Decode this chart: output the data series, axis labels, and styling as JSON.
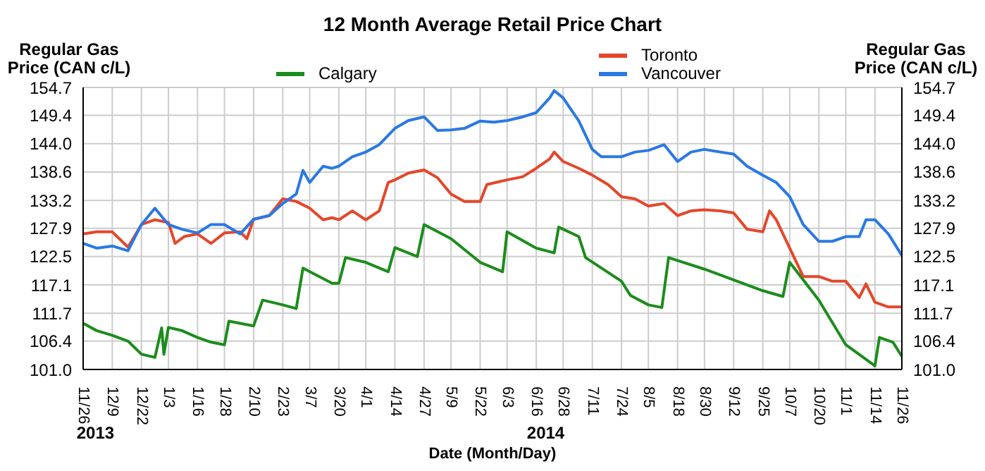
{
  "chart_data": {
    "type": "line",
    "title": "12 Month Average Retail Price Chart",
    "xlabel": "Date (Month/Day)",
    "ylabel": "Regular Gas Price (CAN c/L)",
    "y2label": "Regular Gas Price (CAN c/L)",
    "xlim": [
      "2013-11-26",
      "2014-11-26"
    ],
    "xticks": [
      {
        "value": "2013-11-26",
        "label": "11/26"
      },
      {
        "value": "2013-12-09",
        "label": "12/9"
      },
      {
        "value": "2013-12-22",
        "label": "12/22"
      },
      {
        "value": "2014-01-03",
        "label": "1/3"
      },
      {
        "value": "2014-01-16",
        "label": "1/16"
      },
      {
        "value": "2014-01-28",
        "label": "1/28"
      },
      {
        "value": "2014-02-10",
        "label": "2/10"
      },
      {
        "value": "2014-02-23",
        "label": "2/23"
      },
      {
        "value": "2014-03-07",
        "label": "3/7"
      },
      {
        "value": "2014-03-20",
        "label": "3/20"
      },
      {
        "value": "2014-04-01",
        "label": "4/1"
      },
      {
        "value": "2014-04-14",
        "label": "4/14"
      },
      {
        "value": "2014-04-27",
        "label": "4/27"
      },
      {
        "value": "2014-05-09",
        "label": "5/9"
      },
      {
        "value": "2014-05-22",
        "label": "5/22"
      },
      {
        "value": "2014-06-03",
        "label": "6/3"
      },
      {
        "value": "2014-06-16",
        "label": "6/16"
      },
      {
        "value": "2014-06-28",
        "label": "6/28"
      },
      {
        "value": "2014-07-11",
        "label": "7/11"
      },
      {
        "value": "2014-07-24",
        "label": "7/24"
      },
      {
        "value": "2014-08-05",
        "label": "8/5"
      },
      {
        "value": "2014-08-18",
        "label": "8/18"
      },
      {
        "value": "2014-08-30",
        "label": "8/30"
      },
      {
        "value": "2014-09-12",
        "label": "9/12"
      },
      {
        "value": "2014-09-25",
        "label": "9/25"
      },
      {
        "value": "2014-10-07",
        "label": "10/7"
      },
      {
        "value": "2014-10-20",
        "label": "10/20"
      },
      {
        "value": "2014-11-01",
        "label": "11/1"
      },
      {
        "value": "2014-11-14",
        "label": "11/14"
      },
      {
        "value": "2014-11-26",
        "label": "11/26"
      }
    ],
    "ylim": [
      101.0,
      154.7
    ],
    "yticks": [
      {
        "value": 101.0,
        "label": "101.0"
      },
      106.4,
      111.7,
      117.1,
      122.5,
      127.9,
      133.2,
      138.6,
      {
        "value": 144.0,
        "label": "144.0"
      },
      149.4,
      154.7
    ],
    "y2lim": [
      101.0,
      154.7
    ],
    "y2ticks": [
      {
        "value": 101.0,
        "label": "101.0"
      },
      106.4,
      111.7,
      117.1,
      122.5,
      127.9,
      133.2,
      138.6,
      {
        "value": 144.0,
        "label": "144.0"
      },
      149.4,
      154.7
    ],
    "grid": true,
    "legend": "top",
    "marker": "none",
    "line_style": "solid",
    "annotations": [
      "2013",
      "2014"
    ],
    "series": [
      {
        "name": "Calgary",
        "color": "#1c8c1c",
        "x": [
          "2013-11-26",
          "2013-12-02",
          "2013-12-09",
          "2013-12-16",
          "2013-12-22",
          "2013-12-28",
          "2013-12-31",
          "2014-01-01",
          "2014-01-03",
          "2014-01-09",
          "2014-01-16",
          "2014-01-22",
          "2014-01-28",
          "2014-01-30",
          "2014-02-10",
          "2014-02-14",
          "2014-02-23",
          "2014-03-01",
          "2014-03-04",
          "2014-03-17",
          "2014-03-20",
          "2014-03-23",
          "2014-04-01",
          "2014-04-11",
          "2014-04-14",
          "2014-04-24",
          "2014-04-27",
          "2014-05-09",
          "2014-05-22",
          "2014-06-01",
          "2014-06-03",
          "2014-06-16",
          "2014-06-24",
          "2014-06-26",
          "2014-07-05",
          "2014-07-08",
          "2014-07-24",
          "2014-07-28",
          "2014-08-05",
          "2014-08-11",
          "2014-08-14",
          "2014-08-30",
          "2014-09-25",
          "2014-10-04",
          "2014-10-07",
          "2014-10-20",
          "2014-11-01",
          "2014-11-14",
          "2014-11-16",
          "2014-11-22",
          "2014-11-26"
        ],
        "values": [
          109.8,
          108.4,
          107.5,
          106.4,
          103.9,
          103.3,
          108.9,
          103.9,
          109.0,
          108.4,
          107.1,
          106.2,
          105.7,
          110.2,
          109.3,
          114.2,
          113.3,
          112.6,
          120.3,
          117.4,
          117.4,
          122.3,
          121.4,
          119.6,
          124.2,
          122.5,
          128.6,
          125.9,
          121.4,
          119.6,
          127.2,
          124.1,
          123.2,
          128.1,
          126.3,
          122.3,
          117.8,
          115.1,
          113.3,
          112.8,
          122.3,
          120.1,
          116.0,
          114.9,
          121.4,
          114.2,
          105.7,
          101.7,
          107.1,
          106.2,
          103.5
        ]
      },
      {
        "name": "Toronto",
        "color": "#e4472b",
        "x": [
          "2013-11-26",
          "2013-12-02",
          "2013-12-09",
          "2013-12-16",
          "2013-12-22",
          "2013-12-28",
          "2014-01-03",
          "2014-01-06",
          "2014-01-10",
          "2014-01-16",
          "2014-01-22",
          "2014-01-28",
          "2014-02-04",
          "2014-02-07",
          "2014-02-10",
          "2014-02-17",
          "2014-02-23",
          "2014-03-01",
          "2014-03-07",
          "2014-03-13",
          "2014-03-17",
          "2014-03-20",
          "2014-03-26",
          "2014-04-01",
          "2014-04-07",
          "2014-04-11",
          "2014-04-14",
          "2014-04-20",
          "2014-04-27",
          "2014-05-03",
          "2014-05-09",
          "2014-05-15",
          "2014-05-22",
          "2014-05-25",
          "2014-06-03",
          "2014-06-10",
          "2014-06-16",
          "2014-06-22",
          "2014-06-24",
          "2014-06-28",
          "2014-07-05",
          "2014-07-11",
          "2014-07-18",
          "2014-07-24",
          "2014-07-30",
          "2014-08-05",
          "2014-08-12",
          "2014-08-18",
          "2014-08-24",
          "2014-08-30",
          "2014-09-06",
          "2014-09-12",
          "2014-09-18",
          "2014-09-25",
          "2014-09-28",
          "2014-10-01",
          "2014-10-07",
          "2014-10-13",
          "2014-10-20",
          "2014-10-26",
          "2014-11-01",
          "2014-11-07",
          "2014-11-10",
          "2014-11-14",
          "2014-11-20",
          "2014-11-26"
        ],
        "values": [
          126.8,
          127.2,
          127.2,
          124.3,
          128.6,
          129.5,
          129.0,
          125.0,
          126.3,
          126.8,
          125.0,
          127.0,
          127.2,
          125.9,
          129.6,
          130.3,
          133.5,
          133.0,
          131.7,
          129.5,
          129.9,
          129.5,
          131.2,
          129.5,
          131.2,
          136.6,
          137.1,
          138.4,
          139.0,
          137.5,
          134.4,
          133.0,
          133.0,
          136.2,
          137.1,
          137.7,
          139.3,
          141.1,
          142.4,
          140.6,
          139.3,
          138.0,
          136.2,
          133.9,
          133.5,
          132.1,
          132.6,
          130.3,
          131.2,
          131.4,
          131.2,
          130.8,
          127.7,
          127.2,
          131.2,
          129.5,
          124.1,
          118.7,
          118.7,
          117.8,
          117.8,
          114.7,
          117.3,
          113.8,
          112.9,
          112.9
        ]
      },
      {
        "name": "Vancouver",
        "color": "#2a78e4",
        "x": [
          "2013-11-26",
          "2013-12-02",
          "2013-12-09",
          "2013-12-16",
          "2013-12-22",
          "2013-12-28",
          "2014-01-03",
          "2014-01-09",
          "2014-01-16",
          "2014-01-22",
          "2014-01-28",
          "2014-02-04",
          "2014-02-10",
          "2014-02-17",
          "2014-02-23",
          "2014-03-01",
          "2014-03-04",
          "2014-03-07",
          "2014-03-13",
          "2014-03-17",
          "2014-03-20",
          "2014-03-26",
          "2014-04-01",
          "2014-04-07",
          "2014-04-14",
          "2014-04-20",
          "2014-04-27",
          "2014-05-03",
          "2014-05-09",
          "2014-05-15",
          "2014-05-22",
          "2014-05-28",
          "2014-06-03",
          "2014-06-10",
          "2014-06-16",
          "2014-06-22",
          "2014-06-24",
          "2014-06-28",
          "2014-07-05",
          "2014-07-11",
          "2014-07-15",
          "2014-07-24",
          "2014-07-30",
          "2014-08-05",
          "2014-08-12",
          "2014-08-18",
          "2014-08-24",
          "2014-08-30",
          "2014-09-06",
          "2014-09-12",
          "2014-09-18",
          "2014-09-25",
          "2014-10-01",
          "2014-10-07",
          "2014-10-13",
          "2014-10-20",
          "2014-10-26",
          "2014-11-01",
          "2014-11-07",
          "2014-11-10",
          "2014-11-14",
          "2014-11-20",
          "2014-11-26"
        ],
        "values": [
          125.0,
          124.1,
          124.5,
          123.6,
          128.6,
          131.7,
          128.6,
          127.7,
          127.0,
          128.6,
          128.6,
          126.8,
          129.6,
          130.3,
          132.6,
          134.4,
          138.9,
          136.6,
          139.7,
          139.3,
          139.7,
          141.5,
          142.4,
          143.8,
          146.9,
          148.4,
          149.1,
          146.5,
          146.6,
          146.9,
          148.3,
          148.1,
          148.4,
          149.1,
          149.9,
          152.7,
          154.1,
          152.7,
          148.3,
          142.9,
          141.5,
          141.5,
          142.4,
          142.7,
          143.8,
          140.6,
          142.4,
          142.9,
          142.4,
          142.0,
          139.7,
          138.0,
          136.6,
          133.9,
          128.6,
          125.4,
          125.4,
          126.3,
          126.3,
          129.5,
          129.5,
          126.8,
          122.7
        ]
      }
    ]
  }
}
